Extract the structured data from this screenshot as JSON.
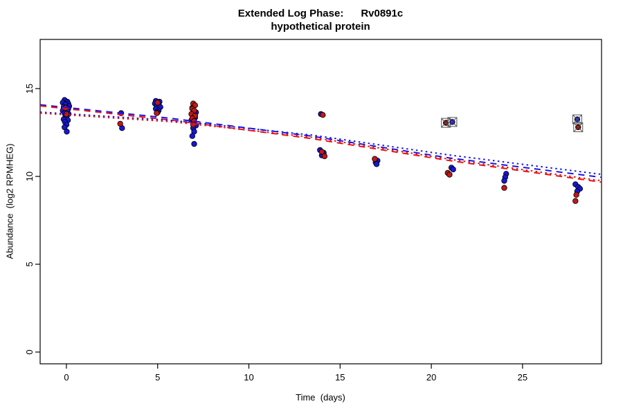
{
  "chart": {
    "title_line1": "Extended Log Phase:      Rv0891c",
    "title_line2": "hypothetical protein",
    "xlabel": "Time  (days)",
    "ylabel": "Abundance  (log2 RPMHEG)"
  },
  "chart_data": {
    "type": "scatter",
    "title": "Extended Log Phase: Rv0891c — hypothetical protein",
    "xlabel": "Time (days)",
    "ylabel": "Abundance (log2 RPMHEG)",
    "xlim": [
      -1.44,
      29.33
    ],
    "ylim": [
      -0.67,
      17.8
    ],
    "xticks": [
      0,
      5,
      10,
      15,
      20,
      25
    ],
    "yticks": [
      0,
      5,
      10,
      15
    ],
    "grid": false,
    "legend": "none",
    "colors": {
      "point_blue": "#1717D1",
      "point_red": "#C01818",
      "marked_dark_red": "#8B0000",
      "trend_blue": "#1414EE",
      "trend_red": "#E81010",
      "axis": "#000000",
      "marker_outline": "#555555"
    },
    "series": [
      {
        "name": "blue-points",
        "color": "#1717D1",
        "points": [
          [
            -0.1,
            14.35
          ],
          [
            0.05,
            14.25
          ],
          [
            -0.2,
            14.2
          ],
          [
            0.1,
            14.15
          ],
          [
            -0.05,
            14.1
          ],
          [
            0.15,
            14.0
          ],
          [
            -0.15,
            13.95
          ],
          [
            0,
            13.9
          ],
          [
            0.1,
            13.85
          ],
          [
            -0.2,
            13.75
          ],
          [
            0.05,
            13.7
          ],
          [
            -0.1,
            13.6
          ],
          [
            0.12,
            13.55
          ],
          [
            -0.05,
            13.45
          ],
          [
            0,
            13.35
          ],
          [
            -0.15,
            13.25
          ],
          [
            0.08,
            13.2
          ],
          [
            -0.08,
            13.1
          ],
          [
            0,
            12.95
          ],
          [
            -0.1,
            12.8
          ],
          [
            0.02,
            12.55
          ],
          [
            3,
            13.6
          ],
          [
            3.05,
            12.75
          ],
          [
            4.9,
            14.3
          ],
          [
            5.1,
            14.25
          ],
          [
            4.85,
            14.15
          ],
          [
            5.05,
            14.1
          ],
          [
            4.95,
            14.0
          ],
          [
            5.15,
            13.95
          ],
          [
            4.9,
            13.85
          ],
          [
            5.05,
            13.75
          ],
          [
            5,
            13.65
          ],
          [
            6.9,
            13.9
          ],
          [
            7.1,
            13.65
          ],
          [
            6.95,
            13.5
          ],
          [
            7.05,
            13.35
          ],
          [
            6.85,
            13.2
          ],
          [
            7,
            13.05
          ],
          [
            7.1,
            12.9
          ],
          [
            6.95,
            12.75
          ],
          [
            7,
            12.55
          ],
          [
            6.9,
            12.3
          ],
          [
            7,
            11.85
          ],
          [
            13.95,
            13.55
          ],
          [
            13.9,
            11.5
          ],
          [
            14.1,
            11.35
          ],
          [
            14,
            11.2
          ],
          [
            17.05,
            10.9
          ],
          [
            16.95,
            10.8
          ],
          [
            17,
            10.7
          ],
          [
            21.1,
            10.5
          ],
          [
            21.2,
            10.4
          ],
          [
            24.1,
            10.15
          ],
          [
            24.05,
            9.95
          ],
          [
            24,
            9.75
          ],
          [
            27.9,
            9.55
          ],
          [
            28.05,
            9.4
          ],
          [
            28.15,
            9.3
          ],
          [
            28,
            9.15
          ]
        ]
      },
      {
        "name": "red-points",
        "color": "#C01818",
        "points": [
          [
            -0.05,
            13.9
          ],
          [
            0,
            13.55
          ],
          [
            2.95,
            13.0
          ],
          [
            5,
            14.2
          ],
          [
            4.95,
            13.6
          ],
          [
            6.95,
            14.15
          ],
          [
            7.05,
            14.05
          ],
          [
            6.9,
            13.85
          ],
          [
            7,
            13.75
          ],
          [
            6.85,
            13.55
          ],
          [
            7.05,
            13.45
          ],
          [
            6.9,
            13.3
          ],
          [
            7,
            13.15
          ],
          [
            6.95,
            12.95
          ],
          [
            14.05,
            13.5
          ],
          [
            14,
            11.4
          ],
          [
            14.15,
            11.15
          ],
          [
            16.9,
            11.0
          ],
          [
            20.9,
            10.2
          ],
          [
            21,
            10.1
          ],
          [
            24,
            9.35
          ],
          [
            27.95,
            8.95
          ],
          [
            27.9,
            8.6
          ]
        ]
      }
    ],
    "marked_points": [
      {
        "x": 20.8,
        "y": 13.05,
        "color": "#8B0000"
      },
      {
        "x": 21.15,
        "y": 13.1,
        "color": "#1717D1"
      },
      {
        "x": 28,
        "y": 13.25,
        "color": "#1717D1"
      },
      {
        "x": 28.05,
        "y": 12.8,
        "color": "#8B0000"
      }
    ],
    "trend_lines": [
      {
        "name": "trend-blue-dashed",
        "color": "#1414EE",
        "dash": "9,7",
        "points": [
          [
            -1.44,
            14.08
          ],
          [
            5.8,
            13.3
          ],
          [
            13.4,
            12.3
          ],
          [
            21,
            11.05
          ],
          [
            29.3,
            9.95
          ]
        ]
      },
      {
        "name": "trend-red-dashed",
        "color": "#E81010",
        "dash": "9,7",
        "points": [
          [
            -1.44,
            14.02
          ],
          [
            5.8,
            13.2
          ],
          [
            13.4,
            12.16
          ],
          [
            21,
            10.9
          ],
          [
            29.3,
            9.68
          ]
        ]
      },
      {
        "name": "trend-blue-dotted",
        "color": "#1414EE",
        "dash": "2.5,4.5",
        "points": [
          [
            -1.44,
            13.66
          ],
          [
            5.8,
            13.19
          ],
          [
            13.4,
            12.36
          ],
          [
            21,
            11.22
          ],
          [
            29.3,
            10.12
          ]
        ]
      },
      {
        "name": "trend-red-dotted",
        "color": "#E81010",
        "dash": "2.5,4.5",
        "points": [
          [
            -1.44,
            13.6
          ],
          [
            5.8,
            13.11
          ],
          [
            13.4,
            12.24
          ],
          [
            21,
            10.98
          ],
          [
            29.3,
            9.76
          ]
        ]
      }
    ]
  }
}
